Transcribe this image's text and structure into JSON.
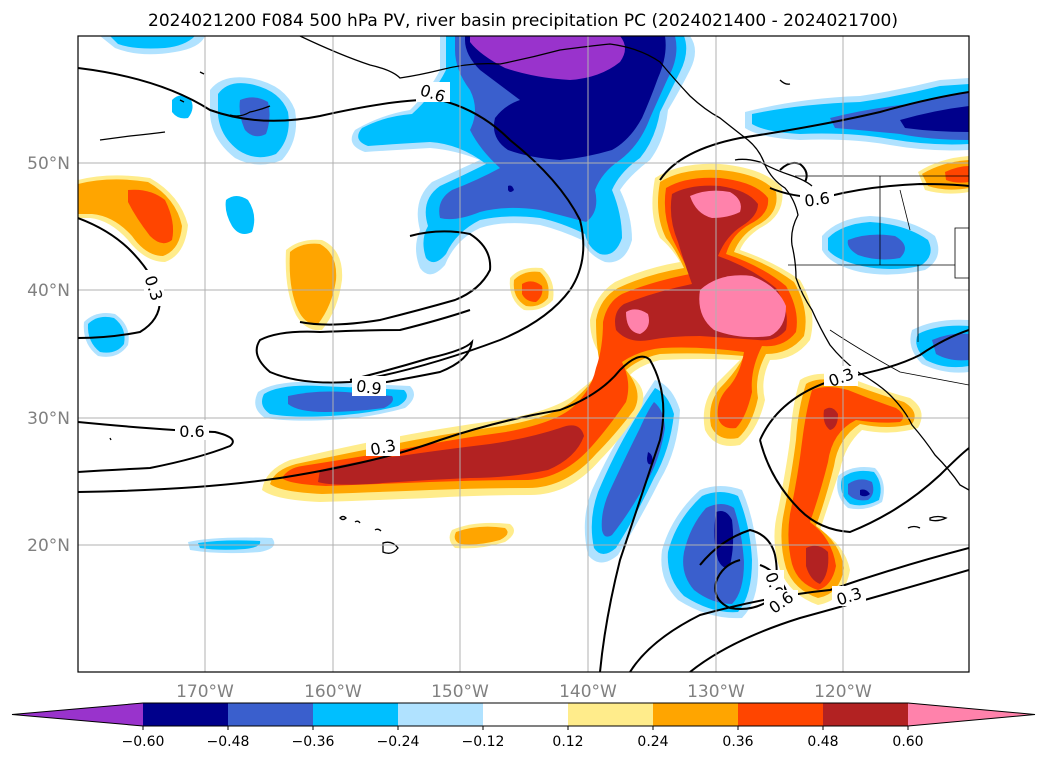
{
  "title": "2024021200 F084 500 hPa PV, river basin precipitation PC (2024021400 - 2024021700)",
  "map": {
    "lat_ticks": [
      "50°N",
      "40°N",
      "30°N",
      "20°N"
    ],
    "lon_ticks": [
      "170°W",
      "160°W",
      "150°W",
      "140°W",
      "130°W",
      "120°W"
    ],
    "gridlines": true
  },
  "contour_labels": [
    "0.6",
    "0.6",
    "0.3",
    "0.6",
    "0.9",
    "0.3",
    "0.3",
    "0.9",
    "0.6",
    "0.3"
  ],
  "colorbar": {
    "colors": [
      "#9933cc",
      "#00008b",
      "#3a5fcd",
      "#00bfff",
      "#b0e2ff",
      "#ffffff",
      "#ffec8b",
      "#ffa500",
      "#ff4500",
      "#b22222",
      "#ff82ab"
    ],
    "tick_labels": [
      "−0.60",
      "−0.48",
      "−0.36",
      "−0.24",
      "−0.12",
      "0.12",
      "0.24",
      "0.36",
      "0.48",
      "0.60"
    ]
  },
  "colors": {
    "light_blue": "#b0e2ff",
    "sky": "#00bfff",
    "royal": "#3a5fcd",
    "navy": "#00008b",
    "purple": "#9933cc",
    "yellow": "#ffec8b",
    "orange": "#ffa500",
    "red_orange": "#ff4500",
    "firebrick": "#b22222",
    "pink": "#ff82ab"
  }
}
